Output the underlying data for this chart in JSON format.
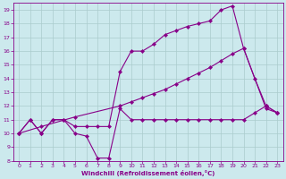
{
  "xlabel": "Windchill (Refroidissement éolien,°C)",
  "bg_color": "#cce9ed",
  "line_color": "#880088",
  "grid_color": "#aacccc",
  "xlim": [
    -0.5,
    23.5
  ],
  "ylim": [
    8,
    19.5
  ],
  "xticks": [
    0,
    1,
    2,
    3,
    4,
    5,
    6,
    7,
    8,
    9,
    10,
    11,
    12,
    13,
    14,
    15,
    16,
    17,
    18,
    19,
    20,
    21,
    22,
    23
  ],
  "yticks": [
    8,
    9,
    10,
    11,
    12,
    13,
    14,
    15,
    16,
    17,
    18,
    19
  ],
  "line1_x": [
    0,
    1,
    2,
    3,
    4,
    5,
    6,
    7,
    8,
    9,
    10,
    11,
    12,
    13,
    14,
    15,
    16,
    17,
    18,
    19,
    20,
    21,
    22,
    23
  ],
  "line1_y": [
    10,
    11,
    10,
    11,
    11,
    10,
    9.8,
    8.2,
    8.2,
    11.8,
    11.0,
    11.0,
    11.0,
    11.0,
    11.0,
    11.0,
    11.0,
    11.0,
    11.0,
    11.0,
    11.0,
    11.5,
    12.0,
    11.5
  ],
  "line2_x": [
    0,
    2,
    5,
    9,
    10,
    11,
    12,
    13,
    14,
    15,
    16,
    17,
    18,
    19,
    20,
    22,
    23
  ],
  "line2_y": [
    10,
    10.5,
    11.2,
    12.0,
    12.3,
    12.6,
    12.9,
    13.2,
    13.6,
    14.0,
    14.4,
    14.8,
    15.3,
    15.8,
    16.2,
    11.8,
    11.5
  ],
  "line3_x": [
    0,
    1,
    2,
    3,
    4,
    5,
    6,
    7,
    8,
    9,
    10,
    11,
    12,
    13,
    14,
    15,
    16,
    17,
    18,
    19,
    20,
    21,
    22,
    23
  ],
  "line3_y": [
    10,
    11,
    10,
    11,
    11,
    10.5,
    10.5,
    10.5,
    10.5,
    14.5,
    16.0,
    16.0,
    16.5,
    17.2,
    17.5,
    17.8,
    18.0,
    18.2,
    19.0,
    19.3,
    16.2,
    14.0,
    12.0,
    11.5
  ]
}
